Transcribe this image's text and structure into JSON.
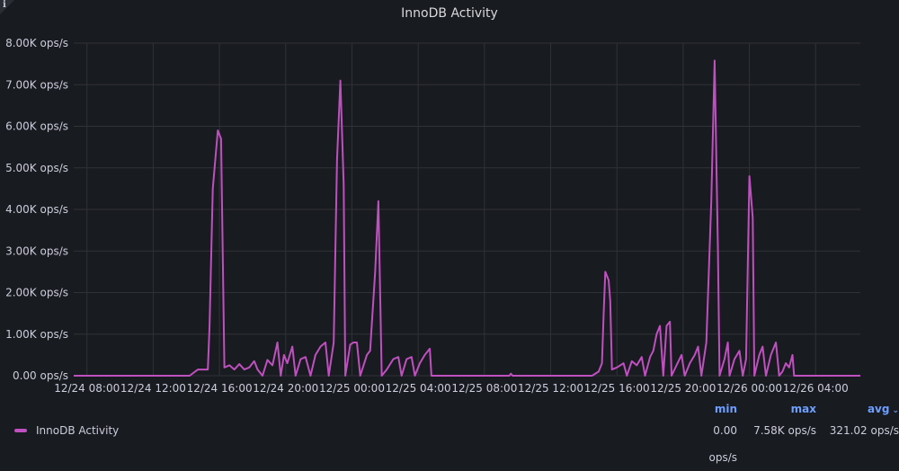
{
  "panel": {
    "title": "InnoDB Activity",
    "info_glyph": "i"
  },
  "legend": {
    "series_name": "InnoDB Activity",
    "color": "#c04fc0",
    "headers": {
      "min": "min",
      "max": "max",
      "avg": "avg"
    },
    "values": {
      "min": "0.00 ops/s",
      "max": "7.58K ops/s",
      "avg": "321.02 ops/s"
    }
  },
  "chart_data": {
    "type": "line",
    "title": "InnoDB Activity",
    "ylabel": "",
    "xlabel": "",
    "x_unit": "hours since 12/24 08:00",
    "ylim": [
      0,
      8000
    ],
    "yticks": [
      0,
      1000,
      2000,
      3000,
      4000,
      5000,
      6000,
      7000,
      8000
    ],
    "ytick_labels": [
      "0.00 ops/s",
      "1.00K ops/s",
      "2.00K ops/s",
      "3.00K ops/s",
      "4.00K ops/s",
      "5.00K ops/s",
      "6.00K ops/s",
      "7.00K ops/s",
      "8.00K ops/s"
    ],
    "xticks": [
      0,
      4,
      8,
      12,
      16,
      20,
      24,
      28,
      32,
      36,
      40,
      44
    ],
    "xtick_labels": [
      "12/24 08:00",
      "12/24 12:00",
      "12/24 16:00",
      "12/24 20:00",
      "12/25 00:00",
      "12/25 04:00",
      "12/25 08:00",
      "12/25 12:00",
      "12/25 16:00",
      "12/25 20:00",
      "12/26 00:00",
      "12/26 04:00"
    ],
    "xlim": [
      -0.8,
      46.7
    ],
    "grid": true,
    "legend_position": "bottom-left",
    "series": [
      {
        "name": "InnoDB Activity",
        "color": "#c04fc0",
        "points": [
          [
            -0.8,
            0
          ],
          [
            1.4,
            0
          ],
          [
            2.3,
            0
          ],
          [
            6.2,
            0
          ],
          [
            6.7,
            150
          ],
          [
            7.3,
            150
          ],
          [
            7.4,
            1200
          ],
          [
            7.6,
            4500
          ],
          [
            7.9,
            5900
          ],
          [
            8.1,
            5700
          ],
          [
            8.3,
            200
          ],
          [
            8.6,
            250
          ],
          [
            8.9,
            150
          ],
          [
            9.2,
            280
          ],
          [
            9.5,
            150
          ],
          [
            9.8,
            200
          ],
          [
            10.1,
            350
          ],
          [
            10.3,
            150
          ],
          [
            10.6,
            0
          ],
          [
            10.9,
            380
          ],
          [
            11.2,
            250
          ],
          [
            11.5,
            800
          ],
          [
            11.7,
            0
          ],
          [
            11.9,
            500
          ],
          [
            12.1,
            300
          ],
          [
            12.4,
            700
          ],
          [
            12.6,
            0
          ],
          [
            12.9,
            400
          ],
          [
            13.2,
            450
          ],
          [
            13.5,
            0
          ],
          [
            13.8,
            500
          ],
          [
            14.1,
            700
          ],
          [
            14.4,
            800
          ],
          [
            14.6,
            0
          ],
          [
            14.9,
            800
          ],
          [
            15.1,
            5200
          ],
          [
            15.3,
            7100
          ],
          [
            15.5,
            4600
          ],
          [
            15.6,
            0
          ],
          [
            15.9,
            750
          ],
          [
            16.1,
            800
          ],
          [
            16.3,
            800
          ],
          [
            16.5,
            0
          ],
          [
            16.9,
            500
          ],
          [
            17.1,
            600
          ],
          [
            17.4,
            2500
          ],
          [
            17.6,
            4200
          ],
          [
            17.8,
            0
          ],
          [
            18.1,
            150
          ],
          [
            18.5,
            400
          ],
          [
            18.8,
            450
          ],
          [
            19.0,
            0
          ],
          [
            19.3,
            400
          ],
          [
            19.6,
            450
          ],
          [
            19.8,
            0
          ],
          [
            20.1,
            300
          ],
          [
            20.4,
            500
          ],
          [
            20.7,
            650
          ],
          [
            20.8,
            0
          ],
          [
            25.5,
            0
          ],
          [
            25.6,
            50
          ],
          [
            25.7,
            0
          ],
          [
            30.5,
            0
          ],
          [
            30.9,
            100
          ],
          [
            31.1,
            300
          ],
          [
            31.2,
            1500
          ],
          [
            31.3,
            2500
          ],
          [
            31.5,
            2300
          ],
          [
            31.6,
            1800
          ],
          [
            31.7,
            150
          ],
          [
            32.0,
            200
          ],
          [
            32.4,
            300
          ],
          [
            32.6,
            0
          ],
          [
            32.9,
            350
          ],
          [
            33.2,
            250
          ],
          [
            33.5,
            450
          ],
          [
            33.7,
            0
          ],
          [
            34.0,
            450
          ],
          [
            34.2,
            600
          ],
          [
            34.4,
            1000
          ],
          [
            34.6,
            1200
          ],
          [
            34.8,
            0
          ],
          [
            35.0,
            1200
          ],
          [
            35.2,
            1300
          ],
          [
            35.3,
            0
          ],
          [
            35.6,
            250
          ],
          [
            35.9,
            500
          ],
          [
            36.1,
            0
          ],
          [
            36.4,
            300
          ],
          [
            36.7,
            500
          ],
          [
            36.9,
            700
          ],
          [
            37.1,
            0
          ],
          [
            37.4,
            800
          ],
          [
            37.7,
            4200
          ],
          [
            37.9,
            7580
          ],
          [
            38.1,
            3000
          ],
          [
            38.2,
            0
          ],
          [
            38.5,
            400
          ],
          [
            38.7,
            800
          ],
          [
            38.8,
            0
          ],
          [
            39.1,
            400
          ],
          [
            39.4,
            600
          ],
          [
            39.6,
            0
          ],
          [
            39.8,
            400
          ],
          [
            40.0,
            4800
          ],
          [
            40.2,
            3800
          ],
          [
            40.3,
            0
          ],
          [
            40.6,
            500
          ],
          [
            40.8,
            700
          ],
          [
            41.0,
            0
          ],
          [
            41.3,
            500
          ],
          [
            41.6,
            800
          ],
          [
            41.8,
            0
          ],
          [
            42.0,
            100
          ],
          [
            42.2,
            300
          ],
          [
            42.4,
            200
          ],
          [
            42.6,
            500
          ],
          [
            42.7,
            0
          ],
          [
            46.7,
            0
          ]
        ]
      }
    ]
  }
}
